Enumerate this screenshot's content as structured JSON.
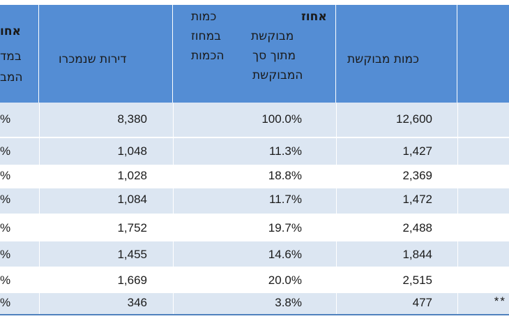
{
  "headers": {
    "col_cut_lines": [
      "אחו",
      "במד",
      "המב"
    ],
    "col_apartments_sold": "דירות שנמכרו",
    "col_pct_lines": [
      "כמות",
      "אחוז",
      "במחוז",
      "מבוקשת",
      "הכמות",
      "מתוך סך",
      "המבוקשת"
    ],
    "col_quantity": "כמות מבוקשת"
  },
  "rows": [
    {
      "cut": "%",
      "sold": "8,380",
      "pct": "100.0%",
      "qty": "12,600",
      "note": ""
    },
    {
      "cut": "%",
      "sold": "1,048",
      "pct": "11.3%",
      "qty": "1,427",
      "note": ""
    },
    {
      "cut": "%",
      "sold": "1,028",
      "pct": "18.8%",
      "qty": "2,369",
      "note": ""
    },
    {
      "cut": "%",
      "sold": "1,084",
      "pct": "11.7%",
      "qty": "1,472",
      "note": ""
    },
    {
      "cut": "%",
      "sold": "1,752",
      "pct": "19.7%",
      "qty": "2,488",
      "note": ""
    },
    {
      "cut": "%",
      "sold": "1,455",
      "pct": "14.6%",
      "qty": "1,844",
      "note": ""
    },
    {
      "cut": "%",
      "sold": "1,669",
      "pct": "20.0%",
      "qty": "2,515",
      "note": ""
    },
    {
      "cut": "%",
      "sold": "346",
      "pct": "3.8%",
      "qty": "477",
      "note": "**"
    }
  ],
  "colors": {
    "header_bg": "#548dd4",
    "row_light": "#dce6f2",
    "row_white": "#ffffff",
    "border": "#4f81bd"
  }
}
